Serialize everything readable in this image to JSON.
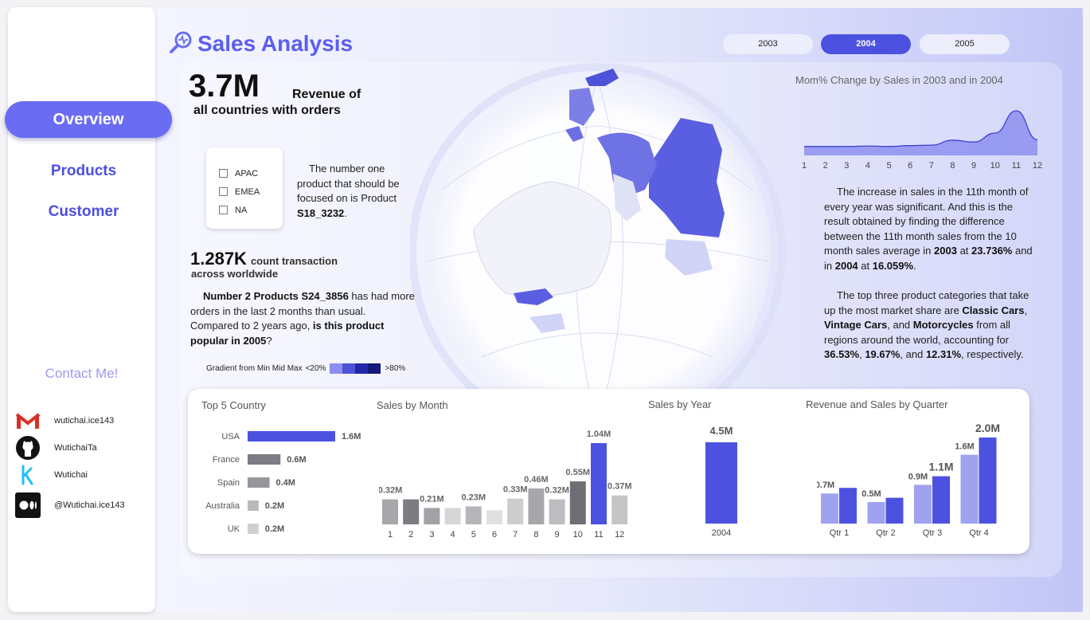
{
  "header": {
    "title": "Sales Analysis",
    "year_buttons": [
      {
        "label": "2003",
        "active": false
      },
      {
        "label": "2004",
        "active": true
      },
      {
        "label": "2005",
        "active": false
      }
    ]
  },
  "sidebar": {
    "nav": [
      {
        "label": "Overview",
        "active": true
      },
      {
        "label": "Products",
        "active": false
      },
      {
        "label": "Customer",
        "active": false
      }
    ],
    "contact_title": "Contact Me!",
    "contacts": [
      {
        "icon": "gmail-icon",
        "text": "wutichai.ice143"
      },
      {
        "icon": "github-icon",
        "text": "WutichaiTa"
      },
      {
        "icon": "kaggle-icon",
        "text": "Wutichai"
      },
      {
        "icon": "medium-icon",
        "text": "@Wutichai.ice143"
      }
    ]
  },
  "kpi": {
    "revenue_value": "3.7M",
    "revenue_label_1": "Revenue of",
    "revenue_label_2": "all countries with orders",
    "transactions_value": "1.287K",
    "transactions_label_1": "count transaction",
    "transactions_label_2": "across worldwide"
  },
  "regions": [
    "APAC",
    "EMEA",
    "NA"
  ],
  "insights": {
    "product_focus_1": "The number one product that should be focused on is Product ",
    "product_focus_code": "S18_3232",
    "product_focus_end": ".",
    "product2_a": "Number 2 Products S24_3856",
    "product2_b": " has had more orders in the last 2 months than usual. Compared to 2 years ago, ",
    "product2_c": "is this product popular in 2005",
    "product2_d": "?",
    "month_text_1": "The increase in sales in the 11th month of every year was significant. And this is the result obtained by finding the difference between the 11th month sales from the 10 month sales average in ",
    "month_2003": "2003",
    "month_text_2": " at ",
    "month_pct1": "23.736%",
    "month_text_3": " and in ",
    "month_2004": "2004",
    "month_text_4": " at ",
    "month_pct2": "16.059%",
    "month_text_5": ".",
    "cat_text_1": "The top three product categories that take up the most market share are ",
    "cat_1": "Classic Cars",
    "cat_sep1": ", ",
    "cat_2": "Vintage Cars",
    "cat_sep2": ", and ",
    "cat_3": "Motorcycles",
    "cat_text_2": " from all regions around the world, accounting for ",
    "cat_p1": "36.53%",
    "cat_sep3": ", ",
    "cat_p2": "19.67%",
    "cat_sep4": ", and ",
    "cat_p3": "12.31%",
    "cat_text_3": ", respectively."
  },
  "map_legend": {
    "label": "Gradient from Min Mid Max",
    "low": "<20%",
    "high": ">80%",
    "colors": [
      "#8b8ef0",
      "#4d52d8",
      "#2229a8",
      "#14187a"
    ]
  },
  "colors": {
    "accent": "#5b5ef0",
    "bar_primary": "#4c52df",
    "bar_light": "#9fa2ee",
    "gray": "#7c7c82"
  },
  "chart_data": [
    {
      "type": "area",
      "title": "Mom% Change by Sales in 2003 and in 2004",
      "x": [
        1,
        2,
        3,
        4,
        5,
        6,
        7,
        8,
        9,
        10,
        11,
        12
      ],
      "values": [
        0.2,
        0.2,
        0.2,
        0.21,
        0.2,
        0.22,
        0.23,
        0.34,
        0.3,
        0.5,
        1.0,
        0.35
      ]
    },
    {
      "type": "bar",
      "title": "Top 5 Country",
      "orientation": "horizontal",
      "categories": [
        "USA",
        "France",
        "Spain",
        "Australia",
        "UK"
      ],
      "values": [
        1.6,
        0.6,
        0.4,
        0.2,
        0.2
      ],
      "labels": [
        "1.6M",
        "0.6M",
        "0.4M",
        "0.2M",
        "0.2M"
      ],
      "colors": [
        "#4c52df",
        "#7c7c82",
        "#96969b",
        "#b9b9bd",
        "#cfcfd3"
      ]
    },
    {
      "type": "bar",
      "title": "Sales by Month",
      "categories": [
        "1",
        "2",
        "3",
        "4",
        "5",
        "6",
        "7",
        "8",
        "9",
        "10",
        "11",
        "12"
      ],
      "values": [
        0.32,
        0.32,
        0.21,
        0.21,
        0.23,
        0.18,
        0.33,
        0.46,
        0.32,
        0.55,
        1.04,
        0.37
      ],
      "labels": [
        "0.32M",
        "",
        "0.21M",
        "",
        "0.23M",
        "",
        "0.33M",
        "0.46M",
        "0.32M",
        "0.55M",
        "1.04M",
        "0.37M"
      ],
      "colors": [
        "#a7a7ab",
        "#7c7c82",
        "#a2a2a6",
        "#d6d6d9",
        "#b6b6ba",
        "#e0e0e2",
        "#cdcdd0",
        "#a7a7ab",
        "#bdbdc1",
        "#6e6e74",
        "#4c52df",
        "#c5c5c8"
      ]
    },
    {
      "type": "bar",
      "title": "Sales by Year",
      "categories": [
        "2004"
      ],
      "values": [
        4.5
      ],
      "labels": [
        "4.5M"
      ]
    },
    {
      "type": "bar",
      "title": "Revenue and Sales by Quarter",
      "categories": [
        "Qtr 1",
        "Qtr 2",
        "Qtr 3",
        "Qtr 4"
      ],
      "series": [
        {
          "values": [
            0.7,
            0.5,
            0.9,
            1.6
          ],
          "labels": [
            "0.7M",
            "0.5M",
            "0.9M",
            "1.6M"
          ],
          "color": "#9fa2ee"
        },
        {
          "values": [
            0.83,
            0.6,
            1.1,
            2.0
          ],
          "labels": [
            "",
            "",
            "1.1M",
            "2.0M"
          ],
          "color": "#4c52df"
        }
      ]
    }
  ]
}
